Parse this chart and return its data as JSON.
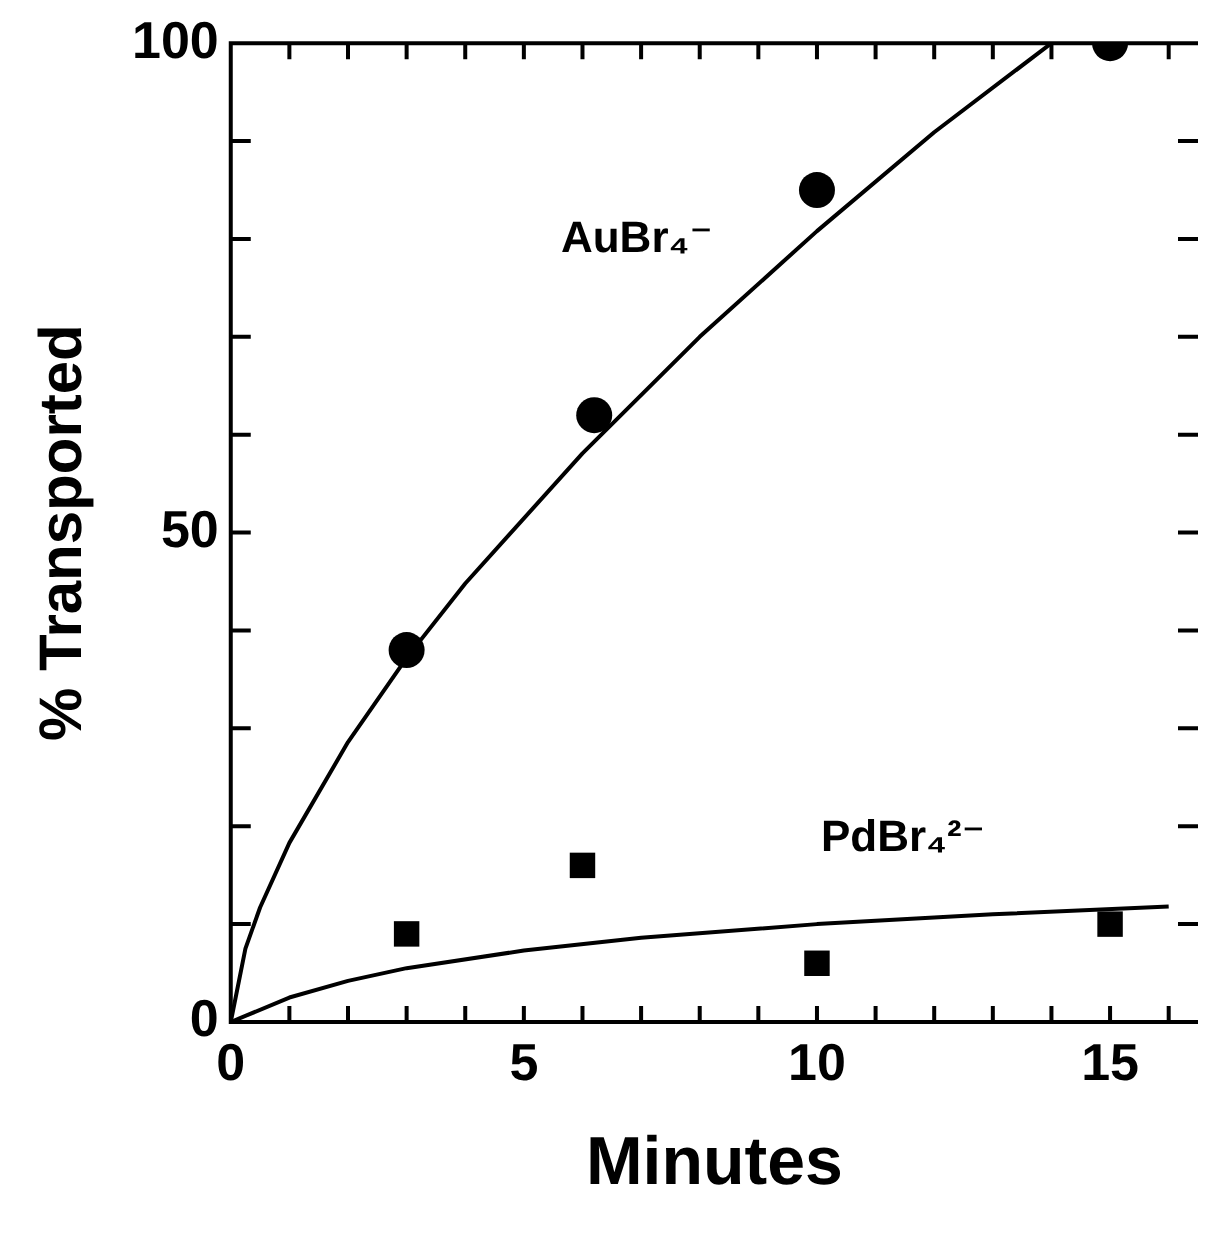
{
  "chart_data": {
    "type": "scatter",
    "xlabel": "Minutes",
    "ylabel": "% Transported",
    "xlim": [
      0,
      16.5
    ],
    "ylim": [
      0,
      100
    ],
    "xticks": [
      0,
      {
        "value": 1,
        "label": null
      },
      {
        "value": 2,
        "label": null
      },
      {
        "value": 3,
        "label": null
      },
      {
        "value": 4,
        "label": null
      },
      5,
      {
        "value": 6,
        "label": null
      },
      {
        "value": 7,
        "label": null
      },
      {
        "value": 8,
        "label": null
      },
      {
        "value": 9,
        "label": null
      },
      10,
      {
        "value": 11,
        "label": null
      },
      {
        "value": 12,
        "label": null
      },
      {
        "value": 13,
        "label": null
      },
      {
        "value": 14,
        "label": null
      },
      15,
      {
        "value": 16,
        "label": null
      }
    ],
    "yticks": [
      0,
      {
        "value": 10,
        "label": null
      },
      {
        "value": 20,
        "label": null
      },
      {
        "value": 30,
        "label": null
      },
      {
        "value": 40,
        "label": null
      },
      50,
      {
        "value": 60,
        "label": null
      },
      {
        "value": 70,
        "label": null
      },
      {
        "value": 80,
        "label": null
      },
      {
        "value": 90,
        "label": null
      },
      100
    ],
    "grid": false,
    "legend": false,
    "series": [
      {
        "name": "AuBr₄⁻",
        "marker": "circle",
        "color": "#000000",
        "x": [
          3,
          6.2,
          10,
          15
        ],
        "values": [
          38,
          62,
          85,
          100
        ]
      },
      {
        "name": "PdBr₄²⁻",
        "marker": "square",
        "color": "#000000",
        "x": [
          3,
          6,
          10,
          15
        ],
        "values": [
          9,
          16,
          6,
          10
        ]
      },
      {
        "type": "line",
        "marker": "none",
        "line_style": "solid",
        "color": "#000000",
        "x": [
          0,
          0.25,
          0.5,
          1,
          2,
          3,
          4,
          6,
          8,
          10,
          12,
          14
        ],
        "values": [
          0,
          7.5,
          11.7,
          18.3,
          28.6,
          37.2,
          44.8,
          58.1,
          70,
          80.8,
          90.9,
          100
        ]
      },
      {
        "type": "line",
        "marker": "none",
        "line_style": "solid",
        "color": "#000000",
        "x": [
          0,
          1,
          2,
          3,
          5,
          7,
          10,
          13,
          16
        ],
        "values": [
          0,
          2.5,
          4.2,
          5.5,
          7.3,
          8.6,
          10,
          11,
          11.8
        ]
      }
    ]
  }
}
